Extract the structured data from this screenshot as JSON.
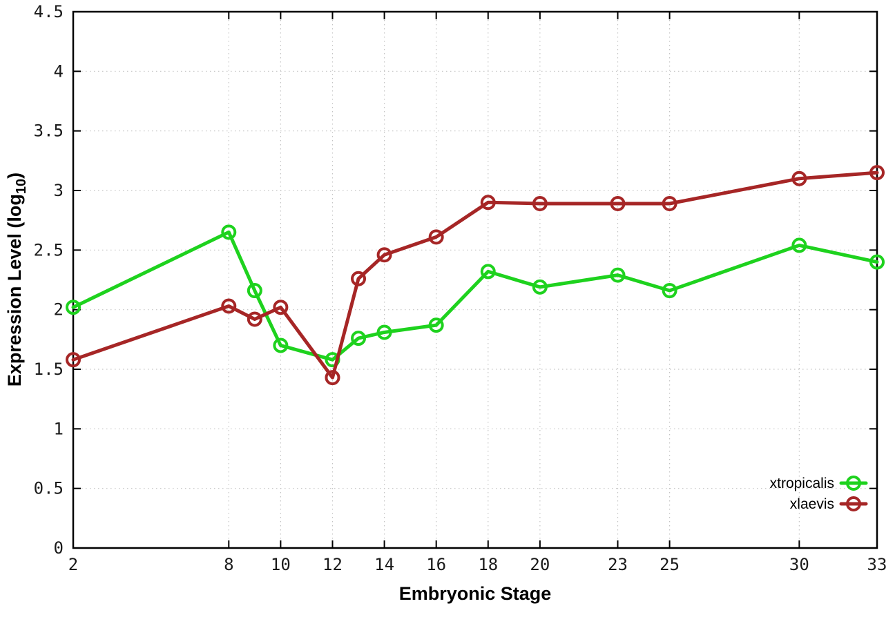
{
  "chart_data": {
    "type": "line",
    "title": "",
    "xlabel": "Embryonic Stage",
    "ylabel": "Expression Level (log10)",
    "ylabel_parts": {
      "pre": "Expression Level (log",
      "sub": "10",
      "post": ")"
    },
    "x": [
      2,
      8,
      9,
      10,
      12,
      13,
      14,
      16,
      18,
      20,
      23,
      25,
      30,
      33
    ],
    "series": [
      {
        "name": "xtropicalis",
        "color": "#1ed21e",
        "values": [
          2.02,
          2.65,
          2.16,
          1.7,
          1.58,
          1.76,
          1.81,
          1.87,
          2.32,
          2.19,
          2.29,
          2.16,
          2.54,
          2.4
        ]
      },
      {
        "name": "xlaevis",
        "color": "#a62626",
        "values": [
          1.58,
          2.03,
          1.92,
          2.02,
          1.43,
          2.26,
          2.46,
          2.61,
          2.9,
          2.89,
          2.89,
          2.89,
          3.1,
          3.15
        ]
      }
    ],
    "xlim": [
      2,
      33
    ],
    "ylim": [
      0,
      4.5
    ],
    "x_ticks": [
      2,
      8,
      10,
      12,
      14,
      16,
      18,
      20,
      23,
      25,
      30,
      33
    ],
    "x_tick_labels": [
      "2",
      "8",
      "10",
      "12",
      "14",
      "16",
      "18",
      "20",
      "23",
      "25",
      "30",
      "33"
    ],
    "y_ticks": [
      0,
      0.5,
      1,
      1.5,
      2,
      2.5,
      3,
      3.5,
      4,
      4.5
    ],
    "y_tick_labels": [
      "0",
      "0.5",
      "1",
      "1.5",
      "2",
      "2.5",
      "3",
      "3.5",
      "4",
      "4.5"
    ],
    "grid": true,
    "legend_position": "inside-bottom-right",
    "marker": "open-circle",
    "colors": {
      "background": "#ffffff",
      "grid": "#c4c4c4",
      "axis": "#000000",
      "tick_text": "#1a1a1a"
    }
  }
}
